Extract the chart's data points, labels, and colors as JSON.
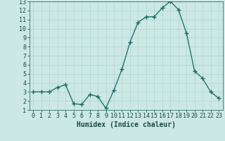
{
  "x": [
    0,
    1,
    2,
    3,
    4,
    5,
    6,
    7,
    8,
    9,
    10,
    11,
    12,
    13,
    14,
    15,
    16,
    17,
    18,
    19,
    20,
    21,
    22,
    23
  ],
  "y": [
    3,
    3,
    3,
    3.5,
    3.8,
    1.7,
    1.6,
    2.7,
    2.5,
    1.2,
    3.2,
    5.5,
    8.5,
    10.7,
    11.3,
    11.3,
    12.3,
    13.0,
    12.1,
    9.5,
    5.3,
    4.5,
    3.0,
    2.3
  ],
  "line_color": "#1a7a6e",
  "marker": "+",
  "marker_size": 4,
  "bg_color": "#cce8e4",
  "grid_color": "#b0d4ce",
  "xlabel": "Humidex (Indice chaleur)",
  "xlim": [
    -0.5,
    23.5
  ],
  "ylim": [
    1,
    13
  ],
  "yticks": [
    1,
    2,
    3,
    4,
    5,
    6,
    7,
    8,
    9,
    10,
    11,
    12,
    13
  ],
  "xticks": [
    0,
    1,
    2,
    3,
    4,
    5,
    6,
    7,
    8,
    9,
    10,
    11,
    12,
    13,
    14,
    15,
    16,
    17,
    18,
    19,
    20,
    21,
    22,
    23
  ],
  "tick_color": "#1a5a50",
  "font_color": "#1a4a3e",
  "xlabel_fontsize": 7,
  "tick_fontsize": 6,
  "linewidth": 1.0,
  "marker_color": "#1a6a5e"
}
